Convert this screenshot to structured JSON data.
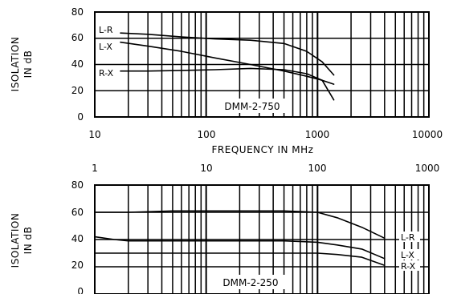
{
  "chart_data": [
    {
      "type": "line",
      "title": "DMM-2-750",
      "xlabel": "FREQUENCY IN MHz",
      "ylabel_lines": [
        "ISOLATION",
        "IN  dB"
      ],
      "x_scale": "log",
      "xlim": [
        10,
        10000
      ],
      "ylim": [
        0,
        80
      ],
      "x_tick_labels": [
        "10",
        "100",
        "1000",
        "10000"
      ],
      "y_tick_labels": [
        "0",
        "20",
        "40",
        "60",
        "80"
      ],
      "grid": true,
      "series": [
        {
          "name": "L-R",
          "x": [
            17,
            30,
            60,
            120,
            250,
            500,
            800,
            1100,
            1400
          ],
          "y": [
            64,
            63,
            61,
            59.5,
            58.5,
            56,
            50,
            42,
            32
          ]
        },
        {
          "name": "L-X",
          "x": [
            17,
            30,
            60,
            120,
            250,
            500,
            800,
            1100,
            1400
          ],
          "y": [
            57,
            54,
            50,
            45,
            40,
            35,
            31,
            28,
            13
          ]
        },
        {
          "name": "R-X",
          "x": [
            17,
            30,
            60,
            120,
            250,
            500,
            800,
            1100,
            1400
          ],
          "y": [
            35,
            35,
            35.5,
            36,
            37,
            36,
            33,
            28,
            25
          ]
        }
      ]
    },
    {
      "type": "line",
      "title": "DMM-2-250",
      "xlabel": "",
      "ylabel_lines": [
        "ISOLATION",
        "IN  dB"
      ],
      "x_scale": "log",
      "xlim": [
        1,
        1000
      ],
      "ylim": [
        0,
        80
      ],
      "x_tick_labels": [
        "1",
        "10",
        "100",
        "1000"
      ],
      "y_tick_labels": [
        "0",
        "20",
        "40",
        "60",
        "80"
      ],
      "grid": true,
      "series": [
        {
          "name": "L-R",
          "x": [
            1,
            2,
            5,
            10,
            20,
            50,
            100,
            150,
            250,
            400
          ],
          "y": [
            60,
            60,
            61,
            61,
            61,
            61,
            60,
            56,
            49,
            41
          ]
        },
        {
          "name": "L-X",
          "x": [
            1,
            1.5,
            2,
            5,
            10,
            20,
            50,
            100,
            150,
            250,
            400
          ],
          "y": [
            42,
            40,
            39,
            39,
            39,
            39,
            39,
            38,
            36,
            33,
            26
          ]
        },
        {
          "name": "R-X",
          "x": [
            1,
            2,
            5,
            10,
            20,
            50,
            100,
            150,
            250,
            400
          ],
          "y": [
            30,
            30,
            30,
            30,
            30,
            30,
            30,
            29,
            27,
            21
          ]
        }
      ]
    }
  ]
}
